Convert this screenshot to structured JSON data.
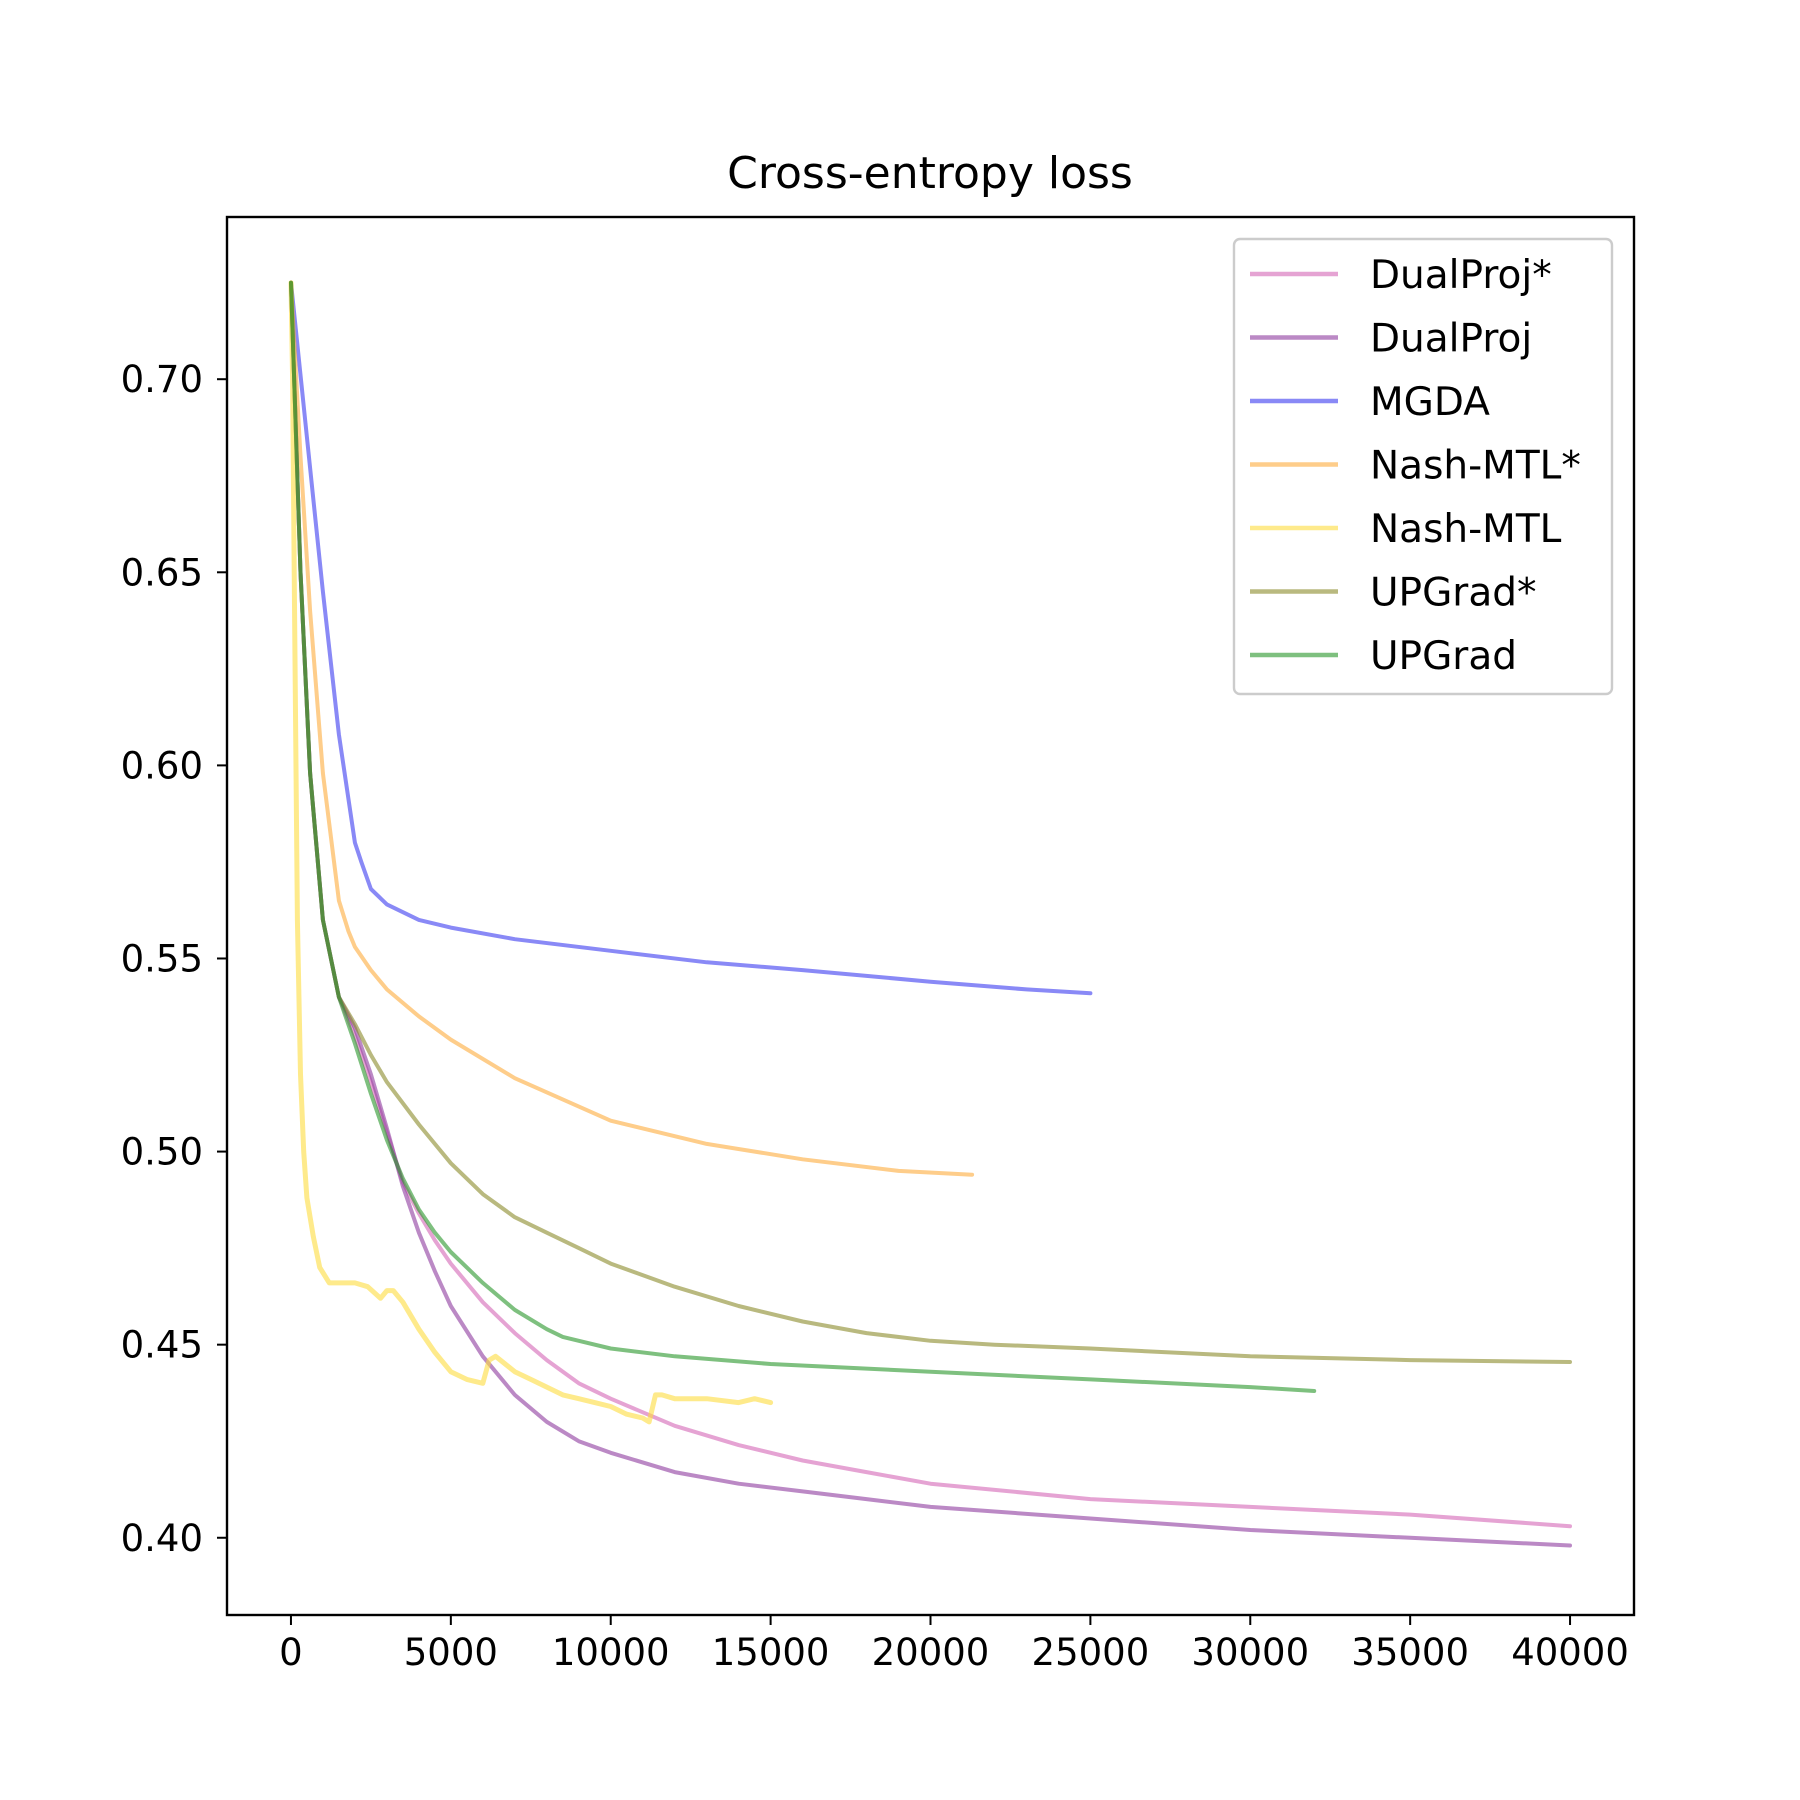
{
  "chart_data": {
    "type": "line",
    "title": "Cross-entropy loss",
    "xlabel": "",
    "ylabel": "",
    "xlim": [
      -2000,
      42000
    ],
    "ylim": [
      0.38,
      0.742
    ],
    "xticks": [
      0,
      5000,
      10000,
      15000,
      20000,
      25000,
      30000,
      35000,
      40000
    ],
    "xtick_labels": [
      "0",
      "5000",
      "10000",
      "15000",
      "20000",
      "25000",
      "30000",
      "35000",
      "40000"
    ],
    "yticks": [
      0.4,
      0.45,
      0.5,
      0.55,
      0.6,
      0.65,
      0.7
    ],
    "ytick_labels": [
      "0.40",
      "0.45",
      "0.50",
      "0.55",
      "0.60",
      "0.65",
      "0.70"
    ],
    "grid": false,
    "legend_position": "top-right",
    "series": [
      {
        "name": "DualProj*",
        "color": "#d466b6",
        "x": [
          0,
          300,
          600,
          1000,
          1500,
          2000,
          2500,
          3000,
          3500,
          4000,
          4500,
          5000,
          6000,
          7000,
          8000,
          9000,
          10000,
          12000,
          14000,
          16000,
          18000,
          20000,
          25000,
          30000,
          35000,
          40000
        ],
        "y": [
          0.725,
          0.65,
          0.598,
          0.56,
          0.54,
          0.53,
          0.518,
          0.505,
          0.492,
          0.484,
          0.477,
          0.471,
          0.461,
          0.453,
          0.446,
          0.44,
          0.436,
          0.429,
          0.424,
          0.42,
          0.417,
          0.414,
          0.41,
          0.408,
          0.406,
          0.403
        ]
      },
      {
        "name": "DualProj",
        "color": "#8e3b9e",
        "x": [
          0,
          300,
          600,
          1000,
          1500,
          2000,
          2500,
          3000,
          3500,
          4000,
          4500,
          5000,
          6000,
          7000,
          8000,
          9000,
          10000,
          12000,
          14000,
          16000,
          18000,
          20000,
          25000,
          30000,
          35000,
          40000
        ],
        "y": [
          0.725,
          0.65,
          0.598,
          0.56,
          0.54,
          0.532,
          0.52,
          0.506,
          0.491,
          0.479,
          0.469,
          0.46,
          0.447,
          0.437,
          0.43,
          0.425,
          0.422,
          0.417,
          0.414,
          0.412,
          0.41,
          0.408,
          0.405,
          0.402,
          0.4,
          0.398
        ]
      },
      {
        "name": "MGDA",
        "color": "#3b3bf0",
        "x": [
          0,
          500,
          1000,
          1500,
          2000,
          2200,
          2500,
          3000,
          4000,
          5000,
          7000,
          10000,
          13000,
          16000,
          20000,
          23000,
          25000
        ],
        "y": [
          0.725,
          0.685,
          0.645,
          0.608,
          0.58,
          0.575,
          0.568,
          0.564,
          0.56,
          0.558,
          0.555,
          0.552,
          0.549,
          0.547,
          0.544,
          0.542,
          0.541
        ]
      },
      {
        "name": "Nash-MTL*",
        "color": "#fdab3c",
        "x": [
          0,
          300,
          600,
          1000,
          1500,
          1800,
          2000,
          2500,
          3000,
          4000,
          5000,
          7000,
          10000,
          13000,
          16000,
          19000,
          21300
        ],
        "y": [
          0.725,
          0.68,
          0.64,
          0.598,
          0.565,
          0.557,
          0.553,
          0.547,
          0.542,
          0.535,
          0.529,
          0.519,
          0.508,
          0.502,
          0.498,
          0.495,
          0.494
        ]
      },
      {
        "name": "Nash-MTL",
        "color": "#fedc3e",
        "x": [
          0,
          50,
          100,
          200,
          300,
          400,
          500,
          700,
          900,
          1200,
          1600,
          2000,
          2400,
          2800,
          3000,
          3200,
          3500,
          4000,
          4500,
          5000,
          5500,
          6000,
          6200,
          6400,
          6700,
          7000,
          7500,
          8000,
          8500,
          9000,
          9500,
          10000,
          10500,
          11000,
          11200,
          11400,
          11600,
          12000,
          13000,
          14000,
          14500,
          15000
        ],
        "y": [
          0.725,
          0.7,
          0.65,
          0.56,
          0.52,
          0.5,
          0.488,
          0.478,
          0.47,
          0.466,
          0.466,
          0.466,
          0.465,
          0.462,
          0.464,
          0.464,
          0.461,
          0.454,
          0.448,
          0.443,
          0.441,
          0.44,
          0.446,
          0.447,
          0.445,
          0.443,
          0.441,
          0.439,
          0.437,
          0.436,
          0.435,
          0.434,
          0.432,
          0.431,
          0.43,
          0.437,
          0.437,
          0.436,
          0.436,
          0.435,
          0.436,
          0.435
        ]
      },
      {
        "name": "UPGrad*",
        "color": "#8b8b2a",
        "x": [
          0,
          300,
          600,
          1000,
          1500,
          2000,
          2500,
          3000,
          4000,
          5000,
          6000,
          7000,
          8000,
          9000,
          10000,
          12000,
          14000,
          16000,
          18000,
          20000,
          22000,
          25000,
          30000,
          35000,
          40000
        ],
        "y": [
          0.725,
          0.65,
          0.598,
          0.56,
          0.54,
          0.533,
          0.525,
          0.518,
          0.507,
          0.497,
          0.489,
          0.483,
          0.479,
          0.475,
          0.471,
          0.465,
          0.46,
          0.456,
          0.453,
          0.451,
          0.45,
          0.449,
          0.447,
          0.446,
          0.4455
        ]
      },
      {
        "name": "UPGrad",
        "color": "#28962a",
        "x": [
          0,
          300,
          600,
          1000,
          1500,
          2000,
          2500,
          3000,
          3500,
          4000,
          4500,
          5000,
          6000,
          7000,
          8000,
          8500,
          9000,
          10000,
          12000,
          15000,
          20000,
          25000,
          30000,
          32000
        ],
        "y": [
          0.725,
          0.65,
          0.598,
          0.56,
          0.54,
          0.528,
          0.515,
          0.503,
          0.493,
          0.485,
          0.479,
          0.474,
          0.466,
          0.459,
          0.454,
          0.452,
          0.451,
          0.449,
          0.447,
          0.445,
          0.443,
          0.441,
          0.439,
          0.438
        ]
      }
    ]
  }
}
